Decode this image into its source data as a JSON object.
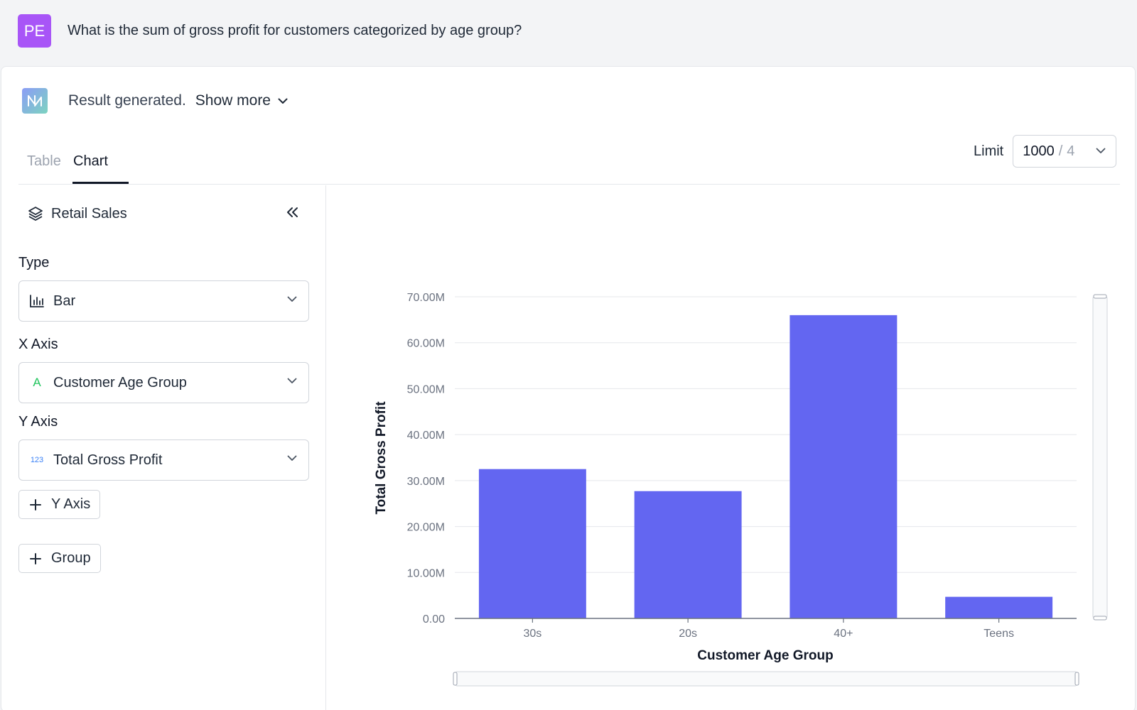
{
  "question": {
    "avatar_initials": "PE",
    "text": "What is the sum of gross profit for customers categorized by age group?"
  },
  "result": {
    "status": "Result generated.",
    "show_more": "Show more"
  },
  "tabs": [
    {
      "label": "Table",
      "active": false
    },
    {
      "label": "Chart",
      "active": true
    }
  ],
  "panel": {
    "source": "Retail Sales",
    "type_label": "Type",
    "type_value": "Bar",
    "x_axis_label": "X Axis",
    "x_axis_value": "Customer Age Group",
    "x_axis_type_glyph": "A",
    "y_axis_label": "Y Axis",
    "y_axis_value": "Total Gross Profit",
    "y_axis_type_glyph": "123",
    "add_y_axis": "Y Axis",
    "add_group": "Group"
  },
  "limit": {
    "label": "Limit",
    "value": "1000",
    "separator": "/",
    "count": "4"
  },
  "colors": {
    "bar": "#6366f1",
    "avatar": "#a855f7",
    "x_axis_glyph": "#22c55e",
    "y_axis_glyph": "#3b82f6"
  },
  "chart_data": {
    "type": "bar",
    "categories": [
      "30s",
      "20s",
      "40+",
      "Teens"
    ],
    "values": [
      32.5,
      27.7,
      66.0,
      4.7
    ],
    "unit_suffix": "M",
    "xlabel": "Customer Age Group",
    "ylabel": "Total Gross Profit",
    "ylim": [
      0,
      70
    ],
    "yticks": [
      0,
      10,
      20,
      30,
      40,
      50,
      60,
      70
    ],
    "ytick_labels": [
      "0.00",
      "10.00M",
      "20.00M",
      "30.00M",
      "40.00M",
      "50.00M",
      "60.00M",
      "70.00M"
    ],
    "grid": true,
    "legend": "none"
  }
}
